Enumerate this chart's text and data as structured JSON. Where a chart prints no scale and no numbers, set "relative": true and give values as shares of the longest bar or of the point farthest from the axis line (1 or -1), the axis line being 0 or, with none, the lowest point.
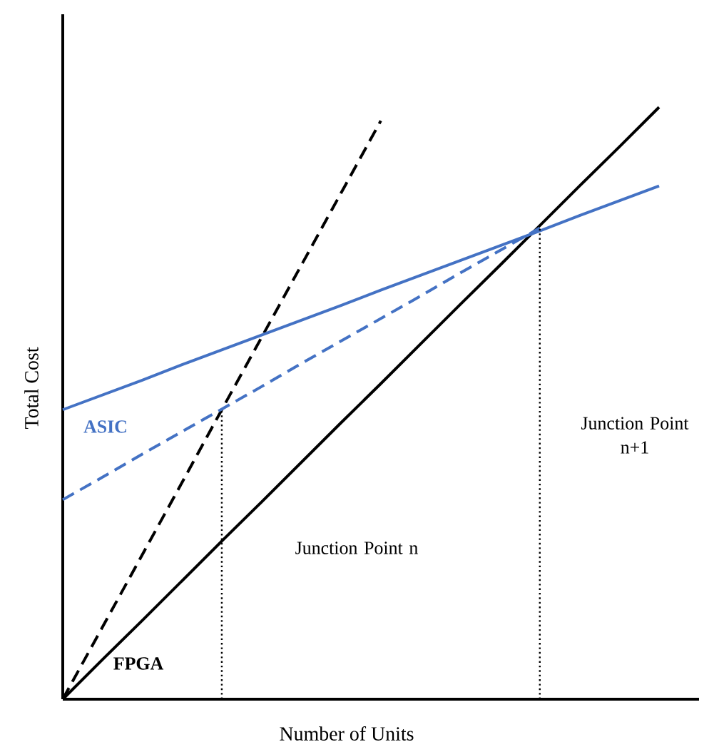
{
  "chart_data": {
    "type": "line",
    "relative": true,
    "xlabel": "Number of Units",
    "ylabel": "Total Cost",
    "marker": "none",
    "categories": [
      null,
      null,
      null,
      null,
      null,
      null,
      null,
      null,
      null,
      null,
      null,
      null,
      null,
      null,
      null,
      null
    ],
    "series": [
      {
        "color": "#000000",
        "line_style": "solid",
        "values": [
          0,
          0.067,
          0.133,
          0.2,
          0.267,
          0.333,
          0.4,
          0.467,
          0.533,
          0.6,
          0.667,
          0.733,
          0.8,
          0.867,
          0.933,
          1
        ]
      },
      {
        "color": "#000000",
        "line_style": "dashed",
        "values": [
          0,
          0.122,
          0.244,
          0.366,
          0.489,
          0.611,
          0.733,
          0.855,
          0.977,
          null,
          null,
          null,
          null,
          null,
          null,
          null
        ]
      },
      {
        "color": "#4472c4",
        "line_style": "solid",
        "values": [
          0.489,
          0.514,
          0.539,
          0.565,
          0.59,
          0.615,
          0.64,
          0.665,
          0.691,
          0.716,
          0.741,
          0.766,
          0.791,
          0.817,
          0.842,
          0.867
        ]
      },
      {
        "color": "#4472c4",
        "line_style": "dashed",
        "values": [
          0.337,
          0.375,
          0.414,
          0.452,
          0.49,
          0.528,
          0.567,
          0.605,
          0.643,
          0.681,
          0.72,
          0.758,
          0.796,
          null,
          null,
          null
        ]
      }
    ],
    "annotations": [
      "ASIC",
      "FPGA",
      "Junction Point n",
      "Junction Point\nn+1"
    ]
  }
}
